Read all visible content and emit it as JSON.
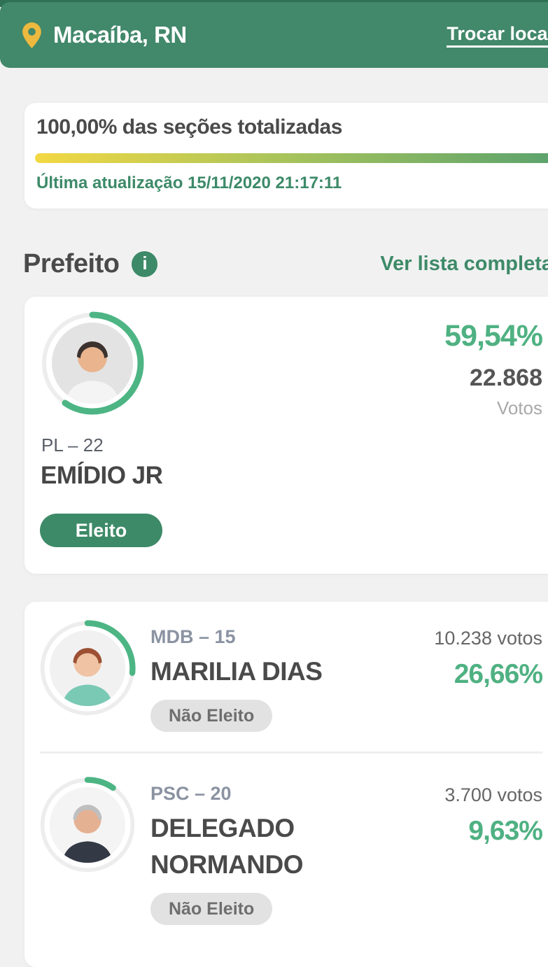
{
  "colors": {
    "page_bg": "#f1f1f2",
    "strip_green": "#2f7154",
    "header_green": "#42886a",
    "green_text": "#3d8a68",
    "percent_green": "#4fb182",
    "arc_green": "#4db584",
    "ring_track": "#ededed",
    "pin_yellow": "#edb93f",
    "dark_text": "#4a4a4a",
    "muted_text": "#a9a9a9",
    "party_gray": "#8b93a2",
    "pill_gray": "#e2e2e2",
    "grad_start": "#f3d843",
    "grad_mid": "#a9c45b",
    "grad_end": "#55a06e"
  },
  "header": {
    "location": "Macaíba, RN",
    "change_location_label": "Trocar local",
    "pin_icon": "location-pin"
  },
  "totalization": {
    "title": "100,00% das seções totalizadas",
    "progress_percent": "100,00%",
    "last_update": "Última atualização 15/11/2020 21:17:11"
  },
  "section": {
    "title": "Prefeito",
    "info_icon_glyph": "i",
    "see_full_list_label": "Ver lista completa"
  },
  "featured_candidate": {
    "percent": "59,54%",
    "votes": "22.868",
    "votes_label": "Votos",
    "party": "PL – 22",
    "name": "EMÍDIO JR",
    "status": "Eleito",
    "avatar": {
      "bg": "#e3e3e3",
      "skin": "#e9b48e",
      "hair": "#3b322e",
      "shirt": "#f4f4f4"
    }
  },
  "other_candidates": [
    {
      "party": "MDB – 15",
      "name": "MARILIA DIAS",
      "votes": "10.238 votos",
      "percent": "26,66%",
      "status": "Não Eleito",
      "avatar": {
        "bg": "#f1f1f1",
        "skin": "#efc3a3",
        "hair": "#9c4f33",
        "shirt": "#79c9b4"
      }
    },
    {
      "party": "PSC – 20",
      "name": "DELEGADO NORMANDO",
      "votes": "3.700 votos",
      "percent": "9,63%",
      "status": "Não Eleito",
      "avatar": {
        "bg": "#f4f4f4",
        "skin": "#e5b193",
        "hair": "#bfbfbf",
        "shirt": "#333a46"
      }
    }
  ]
}
